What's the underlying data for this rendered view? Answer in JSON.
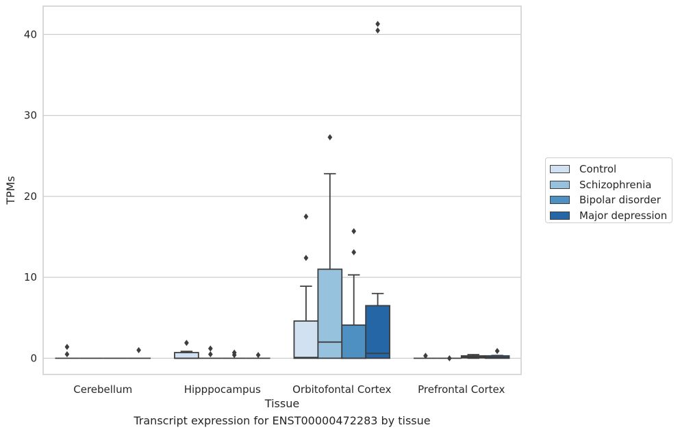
{
  "caption": "Transcript expression for ENST00000472283 by tissue",
  "chart_data": {
    "type": "box",
    "title": "",
    "xlabel": "Tissue",
    "ylabel": "TPMs",
    "ylim": [
      -2,
      43.5
    ],
    "yticks": [
      0,
      10,
      20,
      30,
      40
    ],
    "grid": "horizontal",
    "legend_position": "right",
    "categories": [
      "Cerebellum",
      "Hipppocampus",
      "Orbitofontal Cortex",
      "Prefrontal Cortex"
    ],
    "series": [
      {
        "name": "Control",
        "color": "#d2e1f1",
        "boxes": [
          {
            "q1": 0,
            "median": 0,
            "q3": 0,
            "whislo": 0,
            "whishi": 0,
            "fliers": [
              0.5,
              1.4
            ]
          },
          {
            "q1": 0,
            "median": 0,
            "q3": 0.7,
            "whislo": 0,
            "whishi": 0.85,
            "fliers": [
              1.9
            ]
          },
          {
            "q1": 0,
            "median": 0.1,
            "q3": 4.6,
            "whislo": 0,
            "whishi": 8.9,
            "fliers": [
              12.4,
              17.5
            ]
          },
          {
            "q1": 0,
            "median": 0,
            "q3": 0,
            "whislo": 0,
            "whishi": 0,
            "fliers": [
              0.3
            ]
          }
        ]
      },
      {
        "name": "Schizophrenia",
        "color": "#97c2de",
        "boxes": [
          {
            "q1": 0,
            "median": 0,
            "q3": 0,
            "whislo": 0,
            "whishi": 0,
            "fliers": []
          },
          {
            "q1": 0,
            "median": 0,
            "q3": 0,
            "whislo": 0,
            "whishi": 0,
            "fliers": [
              0.5,
              1.2
            ]
          },
          {
            "q1": 0,
            "median": 2.0,
            "q3": 11.0,
            "whislo": 0,
            "whishi": 22.8,
            "fliers": [
              27.3
            ]
          },
          {
            "q1": 0,
            "median": 0,
            "q3": 0,
            "whislo": 0,
            "whishi": 0,
            "fliers": [
              0.0
            ]
          }
        ]
      },
      {
        "name": "Bipolar disorder",
        "color": "#4e90c1",
        "boxes": [
          {
            "q1": 0,
            "median": 0,
            "q3": 0,
            "whislo": 0,
            "whishi": 0,
            "fliers": []
          },
          {
            "q1": 0,
            "median": 0,
            "q3": 0,
            "whislo": 0,
            "whishi": 0,
            "fliers": [
              0.4,
              0.7
            ]
          },
          {
            "q1": 0,
            "median": 0,
            "q3": 4.1,
            "whislo": 0,
            "whishi": 10.3,
            "fliers": [
              13.1,
              15.7
            ]
          },
          {
            "q1": 0.05,
            "median": 0.15,
            "q3": 0.3,
            "whislo": 0,
            "whishi": 0.45,
            "fliers": []
          }
        ]
      },
      {
        "name": "Major depression",
        "color": "#2566a6",
        "boxes": [
          {
            "q1": 0,
            "median": 0,
            "q3": 0,
            "whislo": 0,
            "whishi": 0,
            "fliers": [
              1.0
            ]
          },
          {
            "q1": 0,
            "median": 0,
            "q3": 0,
            "whislo": 0,
            "whishi": 0,
            "fliers": [
              0.4
            ]
          },
          {
            "q1": 0,
            "median": 0.6,
            "q3": 6.5,
            "whislo": 0,
            "whishi": 8.0,
            "fliers": [
              40.5,
              41.3
            ]
          },
          {
            "q1": 0,
            "median": 0.1,
            "q3": 0.3,
            "whislo": 0,
            "whishi": 0.35,
            "fliers": [
              0.9
            ]
          }
        ]
      }
    ]
  }
}
